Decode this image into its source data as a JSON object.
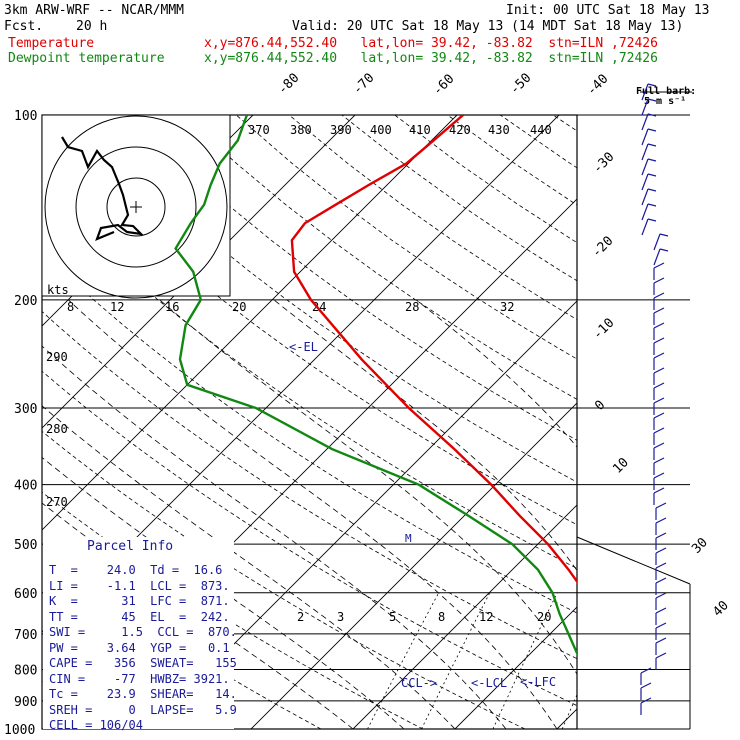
{
  "header": {
    "model": "3km ARW-WRF -- NCAR/MMM",
    "init": "Init: 00 UTC Sat 18 May 13",
    "fcst_label": "Fcst.",
    "fcst_value": "20 h",
    "valid": "Valid: 20 UTC Sat 18 May 13 (14 MDT Sat 18 May 13)",
    "temp_label": "Temperature",
    "temp_info": "x,y=876.44,552.40   lat,lon= 39.42, -83.82  stn=ILN ,72426",
    "dew_label": "Dewpoint temperature",
    "dew_info": "x,y=876.44,552.40   lat,lon= 39.42, -83.82  stn=ILN ,72426"
  },
  "colors": {
    "temperature": "#e00000",
    "dewpoint": "#118811",
    "annot": "#1a1a9a",
    "grid": "#000000"
  },
  "chart_data": {
    "type": "line",
    "title": "Skew-T log-P sounding",
    "pressure_ticks": [
      100,
      200,
      300,
      400,
      500,
      600,
      700,
      800,
      900,
      1000
    ],
    "skew_temp_labels": [
      "-80",
      "-70",
      "-60",
      "-50",
      "-40",
      "-30",
      "-20",
      "-10",
      "0",
      "10",
      "20",
      "30",
      "40"
    ],
    "theta_labels": [
      "370",
      "380",
      "390",
      "400",
      "410",
      "420",
      "430",
      "440"
    ],
    "dry_adiabat_labels": [
      "290",
      "280",
      "270"
    ],
    "wind_speed_labels": [
      "8",
      "12",
      "16",
      "20",
      "24",
      "28",
      "32"
    ],
    "mixing_ratio_labels": [
      "2",
      "3",
      "5",
      "8",
      "12",
      "20"
    ],
    "hodograph_units": "kts",
    "barb_legend": "Full barb:",
    "barb_legend_value": "5 m s⁻¹",
    "series": [
      {
        "name": "Temperature",
        "points": [
          [
            1000,
            25.5
          ],
          [
            975,
            22.4
          ],
          [
            950,
            21.2
          ],
          [
            925,
            20.2
          ],
          [
            900,
            19.1
          ],
          [
            875,
            18.4
          ],
          [
            850,
            16.2
          ],
          [
            825,
            14.6
          ],
          [
            800,
            12.8
          ],
          [
            750,
            9.8
          ],
          [
            700,
            5.6
          ],
          [
            650,
            2.7
          ],
          [
            600,
            -0.6
          ],
          [
            550,
            -4.5
          ],
          [
            500,
            -9.0
          ],
          [
            450,
            -14.5
          ],
          [
            400,
            -20.4
          ],
          [
            350,
            -27.5
          ],
          [
            300,
            -36.0
          ],
          [
            250,
            -45.4
          ],
          [
            200,
            -56.2
          ],
          [
            180,
            -60.6
          ],
          [
            160,
            -63.9
          ],
          [
            150,
            -64.3
          ],
          [
            140,
            -63.1
          ],
          [
            130,
            -61.8
          ],
          [
            120,
            -60.2
          ],
          [
            110,
            -59.8
          ],
          [
            100,
            -59.4
          ]
        ]
      },
      {
        "name": "Dewpoint temperature",
        "points": [
          [
            980,
            13.6
          ],
          [
            950,
            14.6
          ],
          [
            925,
            15.1
          ],
          [
            900,
            12.1
          ],
          [
            875,
            9.8
          ],
          [
            850,
            8.6
          ],
          [
            800,
            6.9
          ],
          [
            750,
            4.4
          ],
          [
            700,
            1.8
          ],
          [
            650,
            -1.0
          ],
          [
            600,
            -3.8
          ],
          [
            550,
            -7.5
          ],
          [
            500,
            -12.5
          ],
          [
            450,
            -19.5
          ],
          [
            400,
            -27.5
          ],
          [
            350,
            -39.5
          ],
          [
            300,
            -51.0
          ],
          [
            275,
            -60.0
          ],
          [
            250,
            -63.2
          ],
          [
            220,
            -66.0
          ],
          [
            200,
            -67.0
          ],
          [
            180,
            -70.5
          ],
          [
            165,
            -74.5
          ],
          [
            150,
            -75.5
          ],
          [
            140,
            -76.0
          ],
          [
            130,
            -77.3
          ],
          [
            120,
            -78.5
          ],
          [
            110,
            -79.0
          ],
          [
            100,
            -80.6
          ]
        ]
      }
    ],
    "levels": [
      {
        "label": "<-EL",
        "p": 242
      },
      {
        "label": "CCL->",
        "p": 870
      },
      {
        "label": "<-LCL",
        "p": 873
      },
      {
        "label": "<-LFC",
        "p": 871
      }
    ]
  },
  "parcel": {
    "title": "Parcel Info",
    "rows": [
      "T  =    24.0  Td =  16.6",
      "LI =    -1.1  LCL =  873.",
      "K  =      31  LFC =  871.",
      "TT =      45  EL  =  242.",
      "SWI =     1.5  CCL =  870.",
      "PW =    3.64  YGP =   0.1",
      "CAPE =   356  SWEAT=   155",
      "CIN =    -77  HWBZ= 3921.",
      "Tc =    23.9  SHEAR=   14.",
      "SREH =     0  LAPSE=   5.9",
      "CELL = 106/04"
    ]
  }
}
